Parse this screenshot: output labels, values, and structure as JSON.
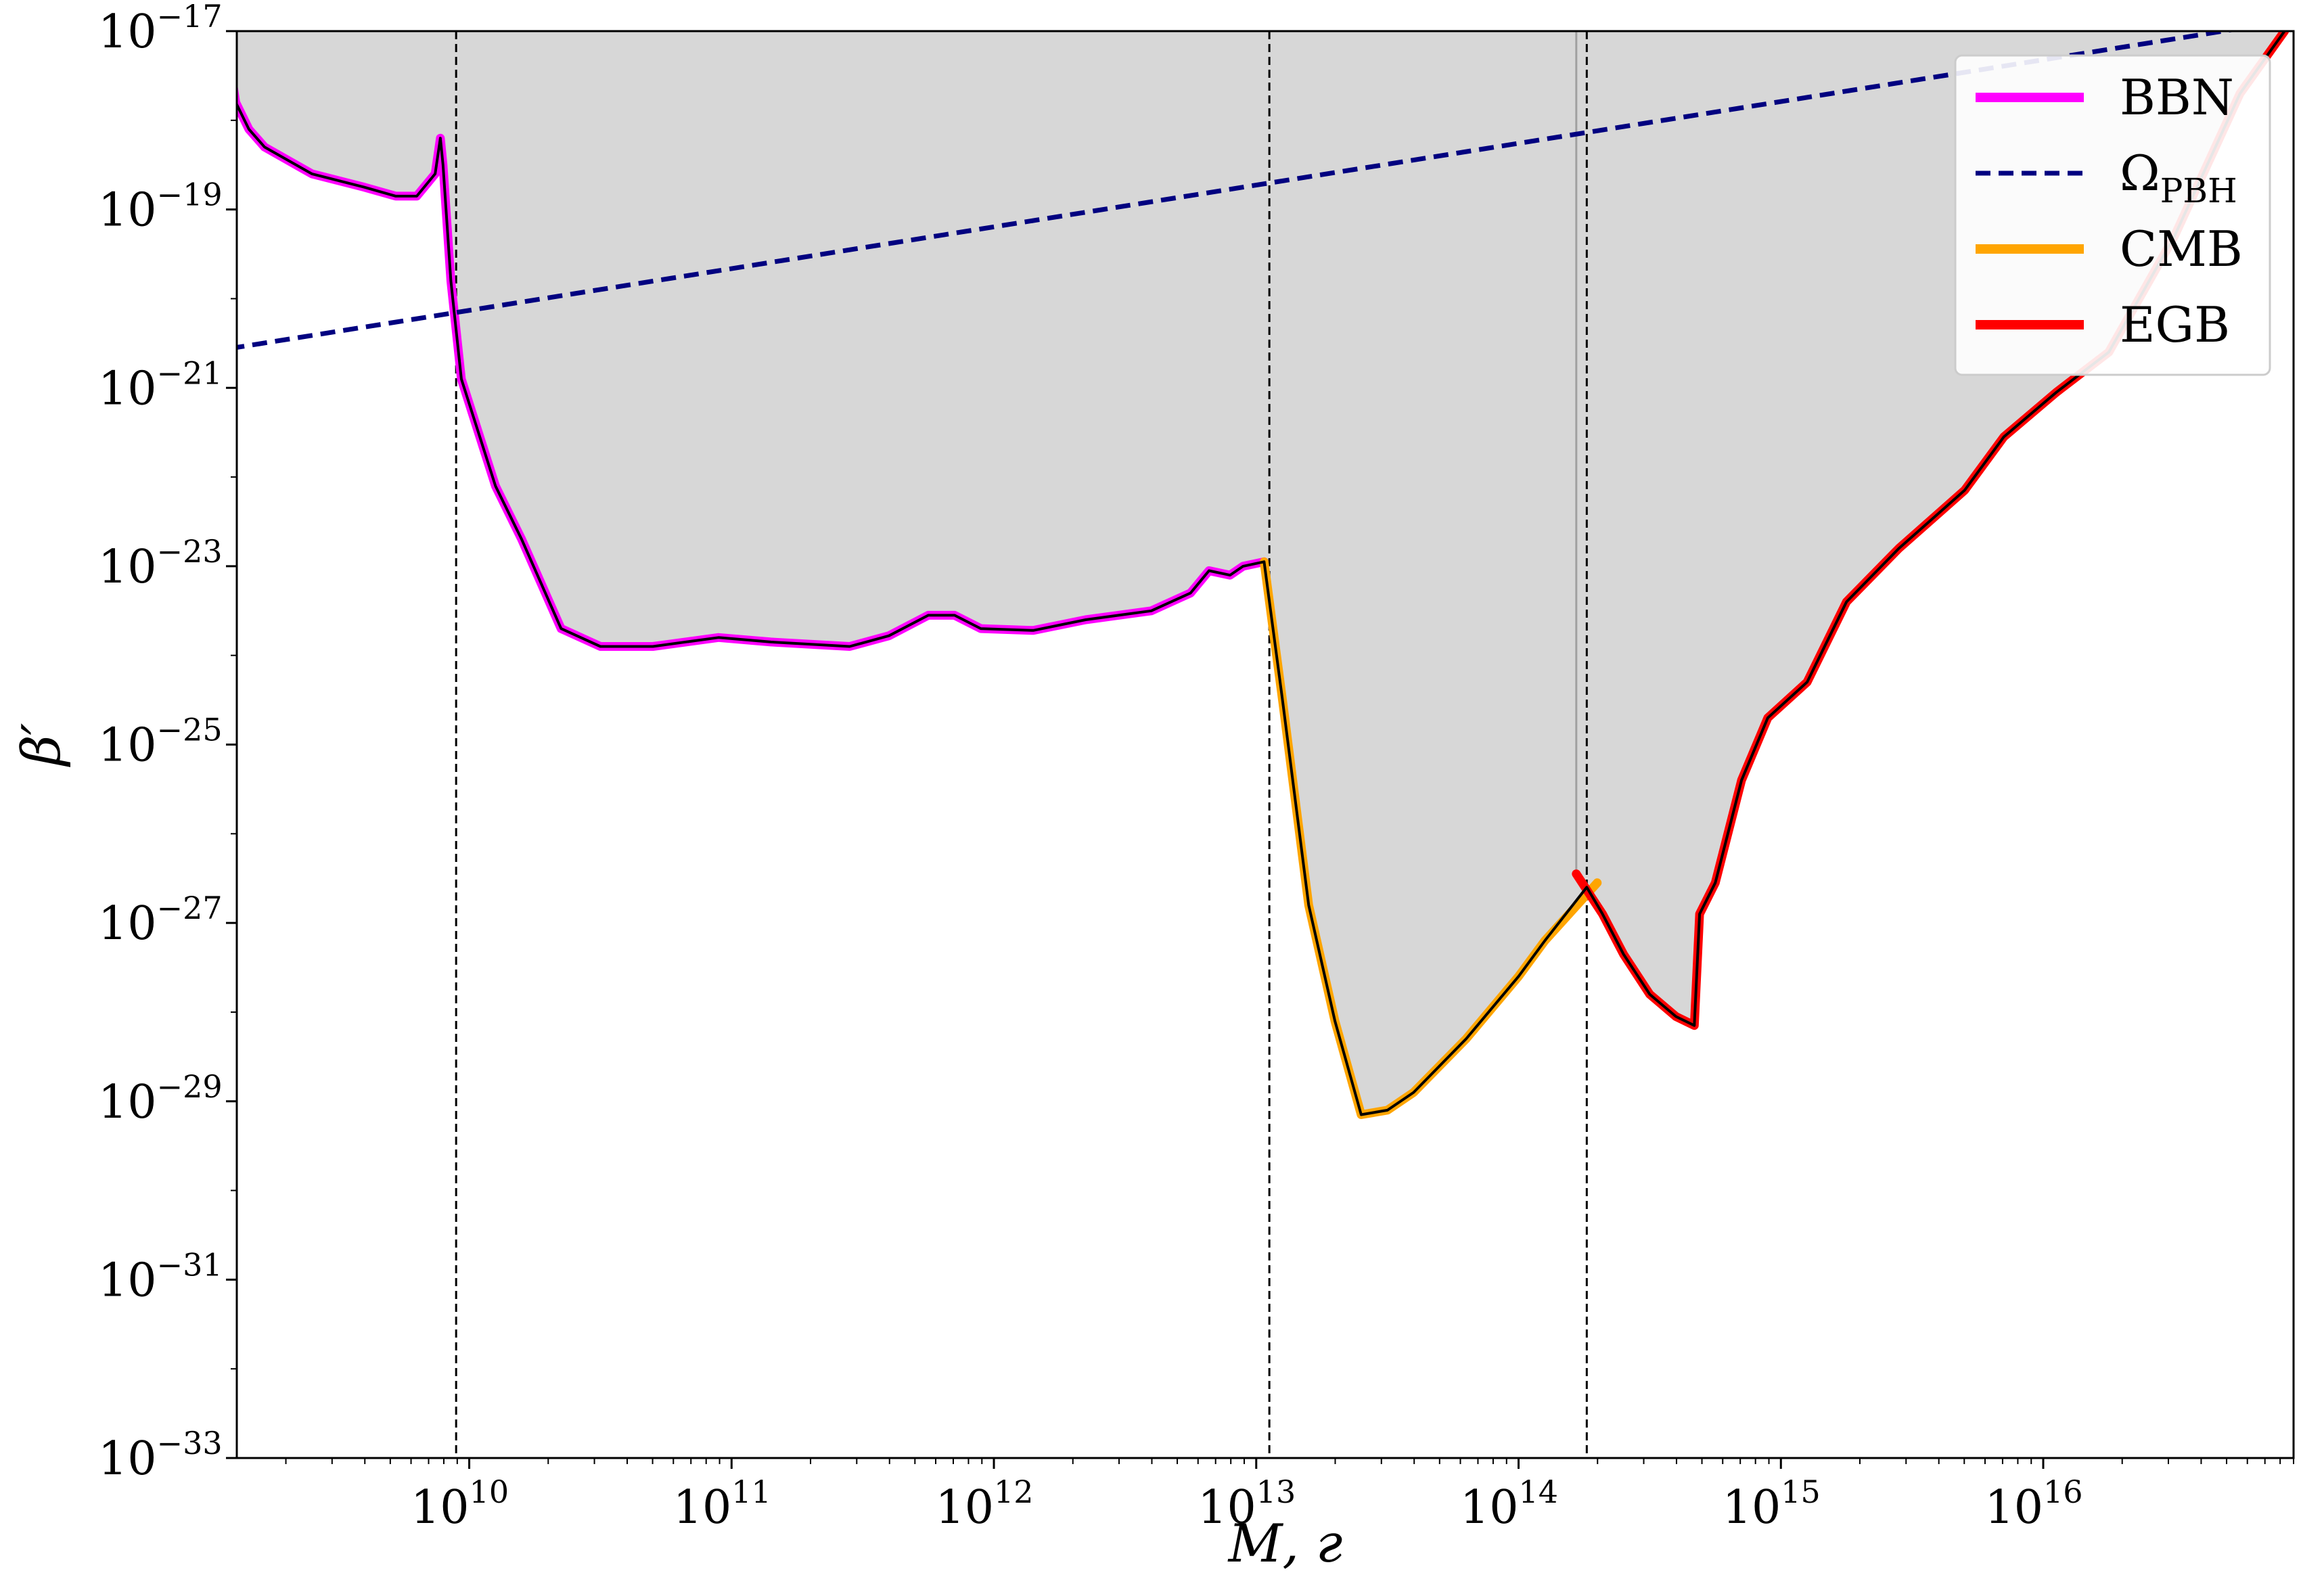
{
  "chart_data": {
    "type": "line",
    "title": "",
    "xlabel": "M, г",
    "ylabel": "β′",
    "xscale": "log",
    "yscale": "log",
    "xlim": [
      1300000000.0,
      9e+16
    ],
    "ylim": [
      1e-33,
      1e-17
    ],
    "grid": false,
    "legend_position": "top-right",
    "x_ticks": [
      {
        "exp": "10",
        "label_base": "10"
      },
      {
        "exp": "11",
        "label_base": "10"
      },
      {
        "exp": "12",
        "label_base": "10"
      },
      {
        "exp": "13",
        "label_base": "10"
      },
      {
        "exp": "14",
        "label_base": "10"
      },
      {
        "exp": "15",
        "label_base": "10"
      },
      {
        "exp": "16",
        "label_base": "10"
      }
    ],
    "y_ticks": [
      {
        "exp": "−17",
        "value": -17
      },
      {
        "exp": "−19",
        "value": -19
      },
      {
        "exp": "−21",
        "value": -21
      },
      {
        "exp": "−23",
        "value": -23
      },
      {
        "exp": "−25",
        "value": -25
      },
      {
        "exp": "−27",
        "value": -27
      },
      {
        "exp": "−29",
        "value": -29
      },
      {
        "exp": "−31",
        "value": -31
      },
      {
        "exp": "−33",
        "value": -33
      }
    ],
    "vertical_lines_log10": [
      9.95,
      13.05,
      14.26
    ],
    "series": [
      {
        "name": "BBN",
        "color": "#ff00ff",
        "style": "solid",
        "points_log10": [
          [
            9.07,
            -17.05
          ],
          [
            9.11,
            -17.8
          ],
          [
            9.16,
            -18.1
          ],
          [
            9.22,
            -18.3
          ],
          [
            9.4,
            -18.6
          ],
          [
            9.6,
            -18.75
          ],
          [
            9.72,
            -18.85
          ],
          [
            9.8,
            -18.85
          ],
          [
            9.87,
            -18.6
          ],
          [
            9.89,
            -18.2
          ],
          [
            9.9,
            -18.5
          ],
          [
            9.93,
            -19.8
          ],
          [
            9.97,
            -20.9
          ],
          [
            10.1,
            -22.1
          ],
          [
            10.2,
            -22.7
          ],
          [
            10.35,
            -23.7
          ],
          [
            10.5,
            -23.9
          ],
          [
            10.7,
            -23.9
          ],
          [
            10.95,
            -23.8
          ],
          [
            11.15,
            -23.85
          ],
          [
            11.45,
            -23.9
          ],
          [
            11.6,
            -23.78
          ],
          [
            11.75,
            -23.55
          ],
          [
            11.85,
            -23.55
          ],
          [
            11.95,
            -23.7
          ],
          [
            12.15,
            -23.72
          ],
          [
            12.35,
            -23.6
          ],
          [
            12.6,
            -23.5
          ],
          [
            12.75,
            -23.3
          ],
          [
            12.82,
            -23.05
          ],
          [
            12.9,
            -23.1
          ],
          [
            12.95,
            -23.0
          ],
          [
            13.03,
            -22.95
          ]
        ]
      },
      {
        "name": "Ω_PBH",
        "color": "#000080",
        "style": "dashed",
        "points_log10": [
          [
            9.0,
            -20.6
          ],
          [
            16.9,
            -16.9
          ]
        ]
      },
      {
        "name": "CMB",
        "color": "#ffa500",
        "style": "solid",
        "points_log10": [
          [
            13.03,
            -22.95
          ],
          [
            13.1,
            -24.5
          ],
          [
            13.2,
            -26.8
          ],
          [
            13.3,
            -28.1
          ],
          [
            13.4,
            -29.15
          ],
          [
            13.5,
            -29.1
          ],
          [
            13.6,
            -28.9
          ],
          [
            13.8,
            -28.3
          ],
          [
            14.0,
            -27.6
          ],
          [
            14.1,
            -27.2
          ],
          [
            14.3,
            -26.55
          ]
        ]
      },
      {
        "name": "EGB",
        "color": "#ff0000",
        "style": "solid",
        "points_log10": [
          [
            14.22,
            -26.45
          ],
          [
            14.32,
            -26.9
          ],
          [
            14.4,
            -27.35
          ],
          [
            14.5,
            -27.8
          ],
          [
            14.6,
            -28.05
          ],
          [
            14.67,
            -28.15
          ],
          [
            14.69,
            -26.9
          ],
          [
            14.75,
            -26.55
          ],
          [
            14.85,
            -25.4
          ],
          [
            14.95,
            -24.7
          ],
          [
            15.1,
            -24.3
          ],
          [
            15.25,
            -23.4
          ],
          [
            15.45,
            -22.8
          ],
          [
            15.7,
            -22.15
          ],
          [
            15.85,
            -21.55
          ],
          [
            16.05,
            -21.05
          ],
          [
            16.25,
            -20.6
          ],
          [
            16.5,
            -19.3
          ],
          [
            16.75,
            -17.7
          ],
          [
            16.92,
            -17.0
          ]
        ]
      }
    ],
    "envelope_color": "#000000",
    "excluded_region_fill": "#d7d7d7"
  },
  "legend": {
    "items": [
      {
        "label": "BBN",
        "sub": "",
        "color": "#ff00ff",
        "style": "solid"
      },
      {
        "label": "Ω",
        "sub": "PBH",
        "color": "#000080",
        "style": "dashed"
      },
      {
        "label": "CMB",
        "sub": "",
        "color": "#ffa500",
        "style": "solid"
      },
      {
        "label": "EGB",
        "sub": "",
        "color": "#ff0000",
        "style": "solid"
      }
    ]
  }
}
